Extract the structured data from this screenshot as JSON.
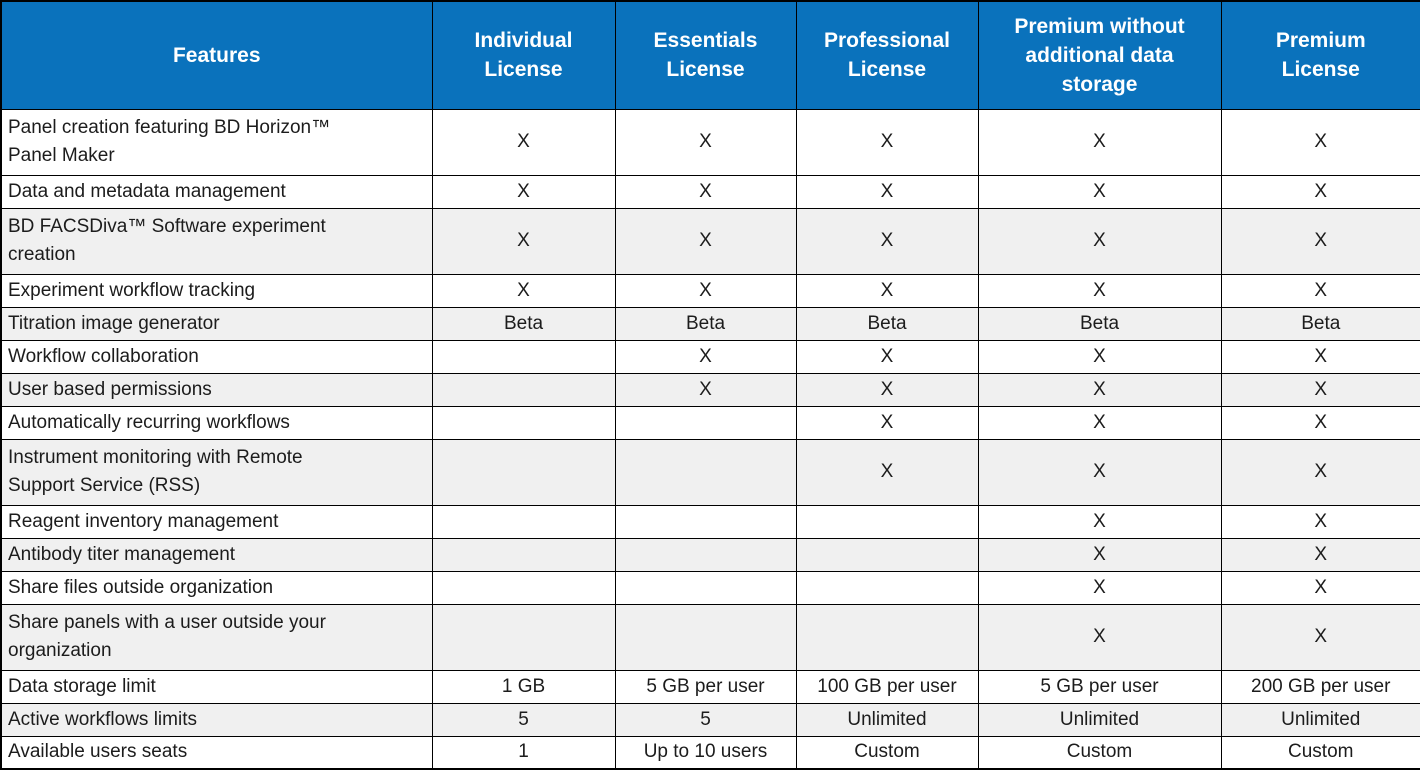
{
  "colors": {
    "header_bg": "#0A72BC",
    "header_text": "#FFFFFF",
    "row_alt_bg": "#F0F0F0",
    "border": "#000000"
  },
  "table": {
    "columns": [
      {
        "label": "Features"
      },
      {
        "label": "Individual\nLicense"
      },
      {
        "label": "Essentials\nLicense"
      },
      {
        "label": "Professional\nLicense"
      },
      {
        "label": "Premium without\nadditional data\nstorage"
      },
      {
        "label": "Premium\nLicense"
      }
    ],
    "rows": [
      {
        "feature": "Panel creation featuring BD Horizon™\nPanel Maker",
        "shaded": false,
        "values": [
          "X",
          "X",
          "X",
          "X",
          "X"
        ]
      },
      {
        "feature": "Data and metadata management",
        "shaded": false,
        "values": [
          "X",
          "X",
          "X",
          "X",
          "X"
        ]
      },
      {
        "feature": "BD FACSDiva™ Software experiment\ncreation",
        "shaded": true,
        "values": [
          "X",
          "X",
          "X",
          "X",
          "X"
        ]
      },
      {
        "feature": "Experiment workflow tracking",
        "shaded": false,
        "values": [
          "X",
          "X",
          "X",
          "X",
          "X"
        ]
      },
      {
        "feature": "Titration image generator",
        "shaded": true,
        "values": [
          "Beta",
          "Beta",
          "Beta",
          "Beta",
          "Beta"
        ]
      },
      {
        "feature": "Workflow collaboration",
        "shaded": false,
        "values": [
          "",
          "X",
          "X",
          "X",
          "X"
        ]
      },
      {
        "feature": "User based permissions",
        "shaded": true,
        "values": [
          "",
          "X",
          "X",
          "X",
          "X"
        ]
      },
      {
        "feature": "Automatically recurring workflows",
        "shaded": false,
        "values": [
          "",
          "",
          "X",
          "X",
          "X"
        ]
      },
      {
        "feature": "Instrument  monitoring with Remote\nSupport Service (RSS)",
        "shaded": true,
        "values": [
          "",
          "",
          "X",
          "X",
          "X"
        ]
      },
      {
        "feature": "Reagent inventory management",
        "shaded": false,
        "values": [
          "",
          "",
          "",
          "X",
          "X"
        ]
      },
      {
        "feature": "Antibody titer management",
        "shaded": true,
        "values": [
          "",
          "",
          "",
          "X",
          "X"
        ]
      },
      {
        "feature": "Share files outside organization",
        "shaded": false,
        "values": [
          "",
          "",
          "",
          "X",
          "X"
        ]
      },
      {
        "feature": "Share panels with a user outside your\norganization",
        "shaded": true,
        "values": [
          "",
          "",
          "",
          "X",
          "X"
        ]
      },
      {
        "feature": "Data storage limit",
        "shaded": false,
        "values": [
          "1 GB",
          "5 GB per user",
          "100 GB per user",
          "5 GB per user",
          "200 GB per user"
        ]
      },
      {
        "feature": "Active workflows limits",
        "shaded": true,
        "values": [
          "5",
          "5",
          "Unlimited",
          "Unlimited",
          "Unlimited"
        ]
      },
      {
        "feature": "Available users seats",
        "shaded": false,
        "values": [
          "1",
          "Up to 10 users",
          "Custom",
          "Custom",
          "Custom"
        ]
      }
    ]
  }
}
